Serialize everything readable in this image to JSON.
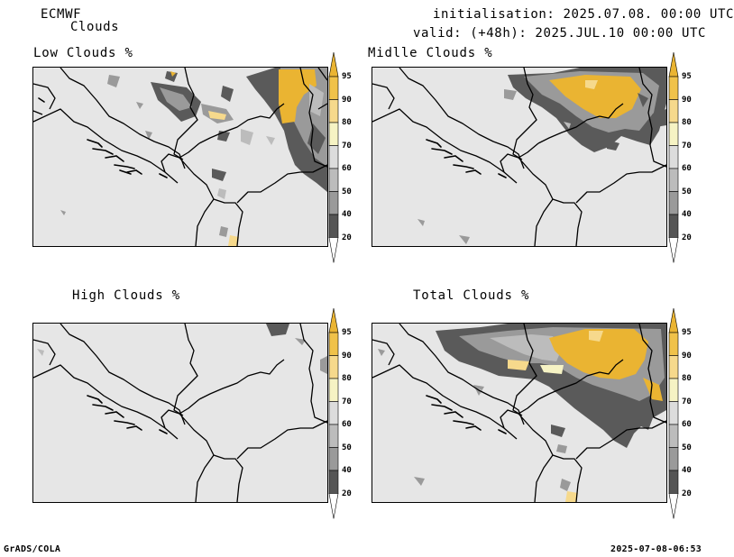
{
  "header": {
    "model": "ECMWF",
    "product": "Clouds",
    "init": "initialisation: 2025.07.08. 00:00 UTC",
    "valid": "valid: (+48h): 2025.JUL.10 00:00 UTC"
  },
  "panels": [
    {
      "title": "Low Clouds %"
    },
    {
      "title": "Midlle Clouds %"
    },
    {
      "title": "High Clouds %"
    },
    {
      "title": "Total Clouds %"
    }
  ],
  "colorbar": {
    "labels": [
      "95",
      "90",
      "80",
      "70",
      "60",
      "50",
      "40",
      "20"
    ],
    "colors": [
      "#eab432",
      "#f0c24a",
      "#f6d98c",
      "#f6f3c4",
      "#dcdcdc",
      "#bcbcbc",
      "#9a9a9a",
      "#555555",
      "#ffffff"
    ]
  },
  "palette": {
    "background": "#e6e6e6",
    "cloud_dark": "#5a5a5a",
    "cloud_mid": "#9a9a9a",
    "cloud_light": "#bcbcbc",
    "cloud_yellow": "#eab432",
    "cloud_pale": "#f6d98c"
  },
  "footer": {
    "left": "GrADS/COLA",
    "right": "2025-07-08-06:53"
  }
}
